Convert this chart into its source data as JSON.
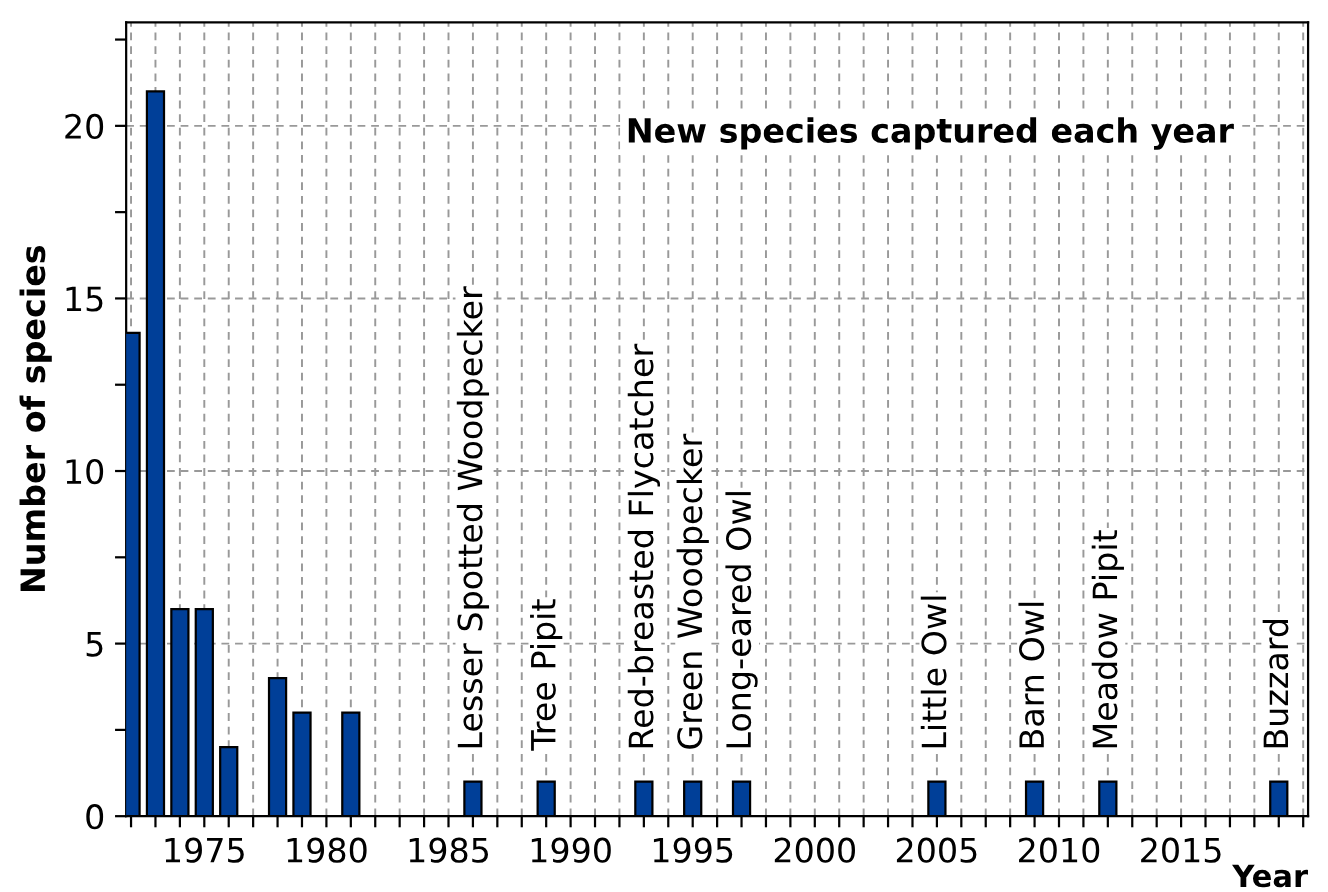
{
  "chart_data": {
    "type": "bar",
    "title": "New species captured each year",
    "xlabel": "Year",
    "ylabel": "Number of species",
    "x": [
      1972,
      1973,
      1974,
      1975,
      1976,
      1978,
      1979,
      1981,
      1986,
      1989,
      1993,
      1995,
      1997,
      2005,
      2009,
      2012,
      2019
    ],
    "values": [
      14,
      21,
      6,
      6,
      2,
      4,
      3,
      3,
      1,
      1,
      1,
      1,
      1,
      1,
      1,
      1,
      1
    ],
    "color": "#003f98",
    "annotations": [
      {
        "text": "Lesser Spotted Woodpecker",
        "x": 1986,
        "y": 1
      },
      {
        "text": "Tree Pipit",
        "x": 1989,
        "y": 1
      },
      {
        "text": "Red-breasted Flycatcher",
        "x": 1993,
        "y": 1
      },
      {
        "text": "Green Woodpecker",
        "x": 1995,
        "y": 1
      },
      {
        "text": "Long-eared Owl",
        "x": 1997,
        "y": 1
      },
      {
        "text": "Little Owl",
        "x": 2005,
        "y": 1
      },
      {
        "text": "Barn Owl",
        "x": 2009,
        "y": 1
      },
      {
        "text": "Meadow Pipit",
        "x": 2012,
        "y": 1
      },
      {
        "text": "Buzzard",
        "x": 2019,
        "y": 1
      }
    ],
    "xlim": [
      1971.8,
      2020.2
    ],
    "ylim": [
      0,
      23
    ],
    "xticks": [
      {
        "value": 1972,
        "label": null
      },
      {
        "value": 1973,
        "label": null
      },
      {
        "value": 1974,
        "label": null
      },
      1975,
      {
        "value": 1976,
        "label": null
      },
      {
        "value": 1977,
        "label": null
      },
      {
        "value": 1978,
        "label": null
      },
      {
        "value": 1979,
        "label": null
      },
      1980,
      {
        "value": 1981,
        "label": null
      },
      {
        "value": 1982,
        "label": null
      },
      {
        "value": 1983,
        "label": null
      },
      {
        "value": 1984,
        "label": null
      },
      1985,
      {
        "value": 1986,
        "label": null
      },
      {
        "value": 1987,
        "label": null
      },
      {
        "value": 1988,
        "label": null
      },
      {
        "value": 1989,
        "label": null
      },
      1990,
      {
        "value": 1991,
        "label": null
      },
      {
        "value": 1992,
        "label": null
      },
      {
        "value": 1993,
        "label": null
      },
      {
        "value": 1994,
        "label": null
      },
      1995,
      {
        "value": 1996,
        "label": null
      },
      {
        "value": 1997,
        "label": null
      },
      {
        "value": 1998,
        "label": null
      },
      {
        "value": 1999,
        "label": null
      },
      2000,
      {
        "value": 2001,
        "label": null
      },
      {
        "value": 2002,
        "label": null
      },
      {
        "value": 2003,
        "label": null
      },
      {
        "value": 2004,
        "label": null
      },
      2005,
      {
        "value": 2006,
        "label": null
      },
      {
        "value": 2007,
        "label": null
      },
      {
        "value": 2008,
        "label": null
      },
      {
        "value": 2009,
        "label": null
      },
      2010,
      {
        "value": 2011,
        "label": null
      },
      {
        "value": 2012,
        "label": null
      },
      {
        "value": 2013,
        "label": null
      },
      {
        "value": 2014,
        "label": null
      },
      2015,
      {
        "value": 2016,
        "label": null
      },
      {
        "value": 2017,
        "label": null
      },
      {
        "value": 2018,
        "label": null
      },
      {
        "value": 2019,
        "label": null
      },
      {
        "value": 2020,
        "label": null
      }
    ],
    "yticks": [
      0,
      {
        "value": 2.5,
        "label": null
      },
      5,
      {
        "value": 7.5,
        "label": null
      },
      10,
      {
        "value": 12.5,
        "label": null
      },
      15,
      {
        "value": 17.5,
        "label": null
      },
      20,
      {
        "value": 22.5,
        "label": null
      }
    ],
    "grid": true
  }
}
